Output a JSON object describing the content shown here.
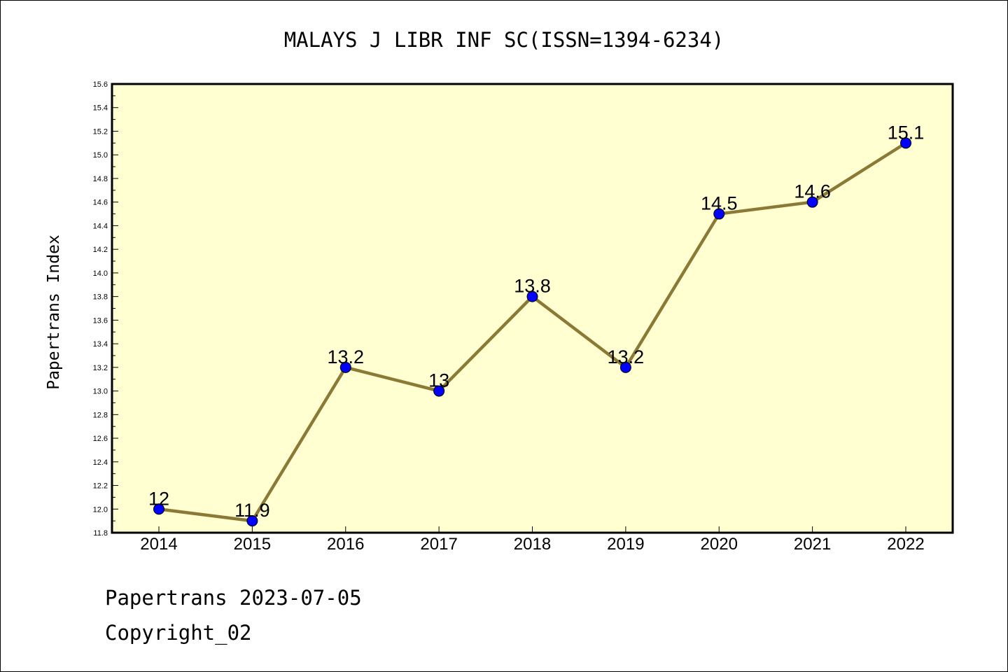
{
  "chart_data": {
    "type": "line",
    "title": "MALAYS J LIBR INF SC(ISSN=1394-6234)",
    "ylabel": "Papertrans Index",
    "xlabel": "",
    "categories": [
      "2014",
      "2015",
      "2016",
      "2017",
      "2018",
      "2019",
      "2020",
      "2021",
      "2022"
    ],
    "series": [
      {
        "values": [
          12,
          11.9,
          13.2,
          13,
          13.8,
          13.2,
          14.5,
          14.6,
          15.1
        ]
      }
    ],
    "data_labels": [
      "12",
      "11.9",
      "13.2",
      "13",
      "13.8",
      "13.2",
      "14.5",
      "14.6",
      "15.1"
    ],
    "ylim": [
      11.8,
      15.6
    ],
    "yticks": [
      "11.8",
      "12.0",
      "12.2",
      "12.4",
      "12.6",
      "12.8",
      "13.0",
      "13.2",
      "13.4",
      "13.6",
      "13.8",
      "14.0",
      "14.2",
      "14.4",
      "14.6",
      "14.8",
      "15.0",
      "15.2",
      "15.4",
      "15.6"
    ],
    "grid": false,
    "legend": "none",
    "colors": {
      "plot_background": "#ffffd2",
      "line": "#8b7a35",
      "marker": "#0000ff"
    }
  },
  "footer": {
    "line1": "Papertrans 2023-07-05",
    "line2": "Copyright_02"
  }
}
